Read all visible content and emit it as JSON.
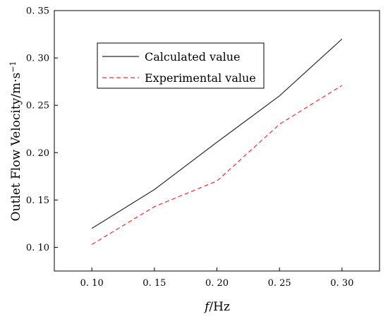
{
  "chart_data": {
    "type": "line",
    "x": [
      0.1,
      0.15,
      0.2,
      0.25,
      0.3
    ],
    "x_tick_labels": [
      "0. 10",
      "0. 15",
      "0. 20",
      "0. 25",
      "0. 30"
    ],
    "xlim": [
      0.07,
      0.33
    ],
    "ylim": [
      0.075,
      0.35
    ],
    "y_ticks": [
      0.1,
      0.15,
      0.2,
      0.25,
      0.3,
      0.35
    ],
    "y_tick_labels": [
      "0. 10",
      "0. 15",
      "0. 20",
      "0. 25",
      "0. 30",
      "0. 35"
    ],
    "xlabel_italic": "f",
    "xlabel_rest": "/Hz",
    "ylabel_main": "Outlet Flow Velocity/m·s",
    "ylabel_sup": "−1",
    "grid": false,
    "legend_position": "upper-left",
    "series": [
      {
        "name": "Calculated value",
        "values": [
          0.12,
          0.161,
          0.211,
          0.26,
          0.32
        ],
        "color": "#2b2b2b",
        "style": "solid"
      },
      {
        "name": "Experimental value",
        "values": [
          0.103,
          0.143,
          0.17,
          0.23,
          0.271
        ],
        "color": "#ff2a2a",
        "style": "dashed"
      }
    ]
  }
}
